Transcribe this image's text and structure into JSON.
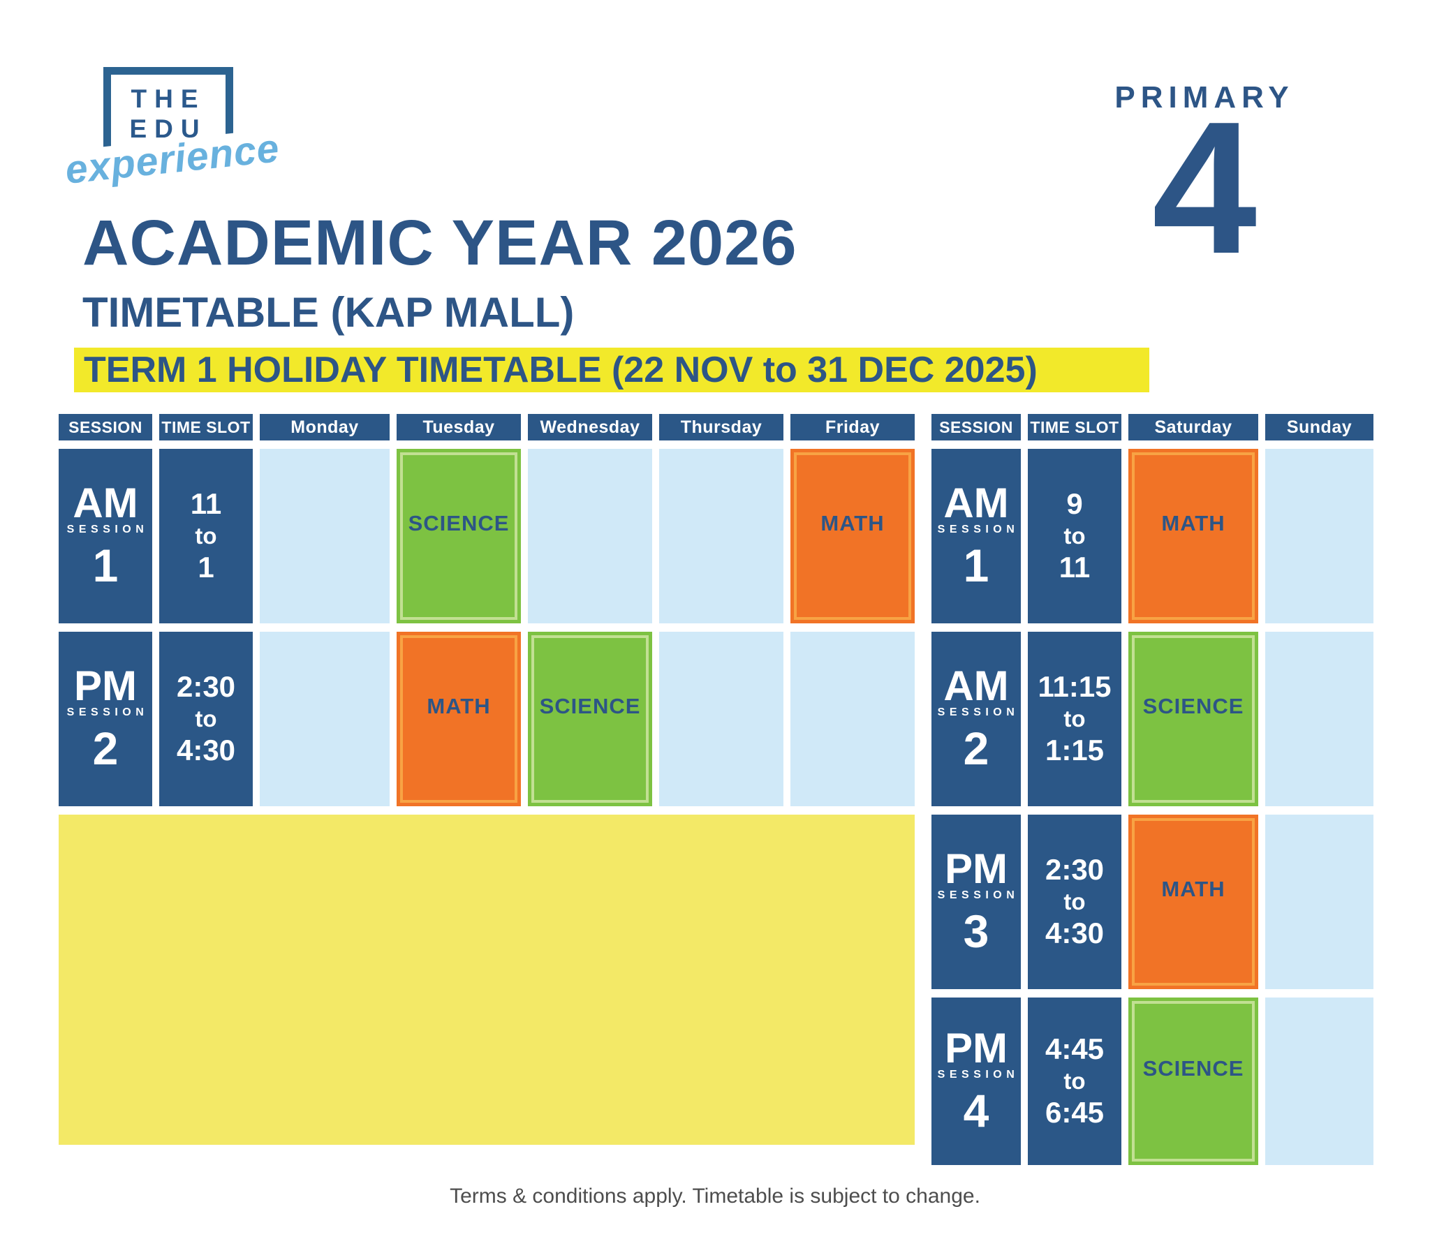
{
  "logo": {
    "line1": "THE",
    "line2": "EDU",
    "script": "experience"
  },
  "level": {
    "label": "PRIMARY",
    "number": "4"
  },
  "title": "ACADEMIC YEAR 2026",
  "subtitle": {
    "part1": "TIMETABLE ",
    "part2": "(KAP MALL)"
  },
  "banner": "TERM 1 HOLIDAY TIMETABLE (22 NOV to 31 DEC 2025)",
  "footer": "Terms & conditions apply. Timetable is subject to change.",
  "colors": {
    "dark_blue": "#2b5787",
    "title_blue": "#2d5586",
    "light_blue": "#d0e9f8",
    "orange": "#f17326",
    "orange_stroke": "#f8a344",
    "green": "#7dc242",
    "green_stroke": "#c2e093",
    "banner_yellow": "#f2e92a",
    "block_yellow": "#f3e967",
    "logo_blue": "#2c6391",
    "script_blue": "#68b1de",
    "footer_gray": "#4d4d4d"
  },
  "table": {
    "left_headers": [
      "SESSION",
      "TIME SLOT",
      "Monday",
      "Tuesday",
      "Wednesday",
      "Thursday",
      "Friday"
    ],
    "right_headers": [
      "SESSION",
      "TIME SLOT",
      "Saturday",
      "Sunday"
    ],
    "rows_left": [
      {
        "session": {
          "period": "AM",
          "label": "SESSION",
          "num": "1"
        },
        "time": [
          "11",
          "to",
          "1"
        ],
        "days": {
          "Monday": null,
          "Tuesday": "SCIENCE",
          "Wednesday": null,
          "Thursday": null,
          "Friday": "MATH"
        }
      },
      {
        "session": {
          "period": "PM",
          "label": "SESSION",
          "num": "2"
        },
        "time": [
          "2:30",
          "to",
          "4:30"
        ],
        "days": {
          "Monday": null,
          "Tuesday": "MATH",
          "Wednesday": "SCIENCE",
          "Thursday": null,
          "Friday": null
        }
      }
    ],
    "rows_right": [
      {
        "session": {
          "period": "AM",
          "label": "SESSION",
          "num": "1"
        },
        "time": [
          "9",
          "to",
          "11"
        ],
        "days": {
          "Saturday": "MATH",
          "Sunday": null
        }
      },
      {
        "session": {
          "period": "AM",
          "label": "SESSION",
          "num": "2"
        },
        "time": [
          "11:15",
          "to",
          "1:15"
        ],
        "days": {
          "Saturday": "SCIENCE",
          "Sunday": null
        }
      },
      {
        "session": {
          "period": "PM",
          "label": "SESSION",
          "num": "3"
        },
        "time": [
          "2:30",
          "to",
          "4:30"
        ],
        "days": {
          "Saturday": "MATH",
          "Sunday": null
        }
      },
      {
        "session": {
          "period": "PM",
          "label": "SESSION",
          "num": "4"
        },
        "time": [
          "4:45",
          "to",
          "6:45"
        ],
        "days": {
          "Saturday": "SCIENCE",
          "Sunday": null
        }
      }
    ]
  }
}
